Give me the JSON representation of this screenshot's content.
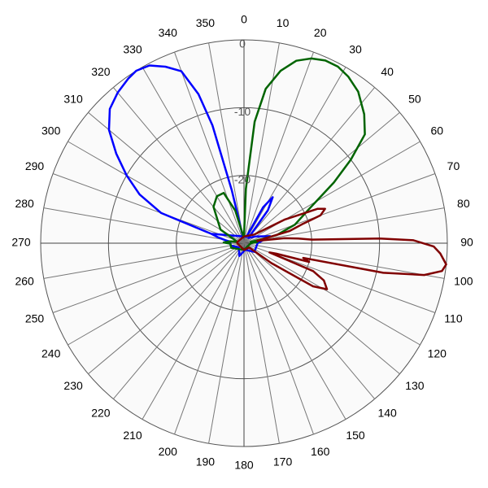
{
  "chart_data": {
    "type": "line",
    "coordinate_system": "polar",
    "angle_direction": "clockwise",
    "angle_zero": "top",
    "angle_ticks": [
      "0",
      "10",
      "20",
      "30",
      "40",
      "50",
      "60",
      "70",
      "80",
      "90",
      "100",
      "110",
      "120",
      "130",
      "140",
      "150",
      "160",
      "170",
      "180",
      "190",
      "200",
      "210",
      "220",
      "230",
      "240",
      "250",
      "260",
      "270",
      "280",
      "290",
      "300",
      "310",
      "320",
      "330",
      "340",
      "350"
    ],
    "radial_range": [
      -30,
      0
    ],
    "radial_ticks": [
      0,
      -10,
      -20
    ],
    "radial_tick_labels": [
      "0",
      "-10",
      "-20"
    ],
    "grid": true,
    "legend": "none",
    "background": "#fafafa",
    "series": [
      {
        "color": "#0000ff",
        "points": [
          [
            0,
            -29
          ],
          [
            286,
            -25
          ],
          [
            290,
            -17
          ],
          [
            295,
            -13
          ],
          [
            300,
            -10
          ],
          [
            305,
            -7
          ],
          [
            310,
            -4
          ],
          [
            315,
            -2
          ],
          [
            320,
            -1
          ],
          [
            325,
            -0.3
          ],
          [
            328,
            0
          ],
          [
            332,
            -0.3
          ],
          [
            336,
            -1.5
          ],
          [
            340,
            -3
          ],
          [
            343,
            -7
          ],
          [
            345,
            -12
          ],
          [
            347,
            -22
          ],
          [
            350,
            -29
          ],
          [
            20,
            -29
          ],
          [
            28,
            -24
          ],
          [
            32,
            -22
          ],
          [
            36,
            -24
          ],
          [
            40,
            -29
          ],
          [
            60,
            -28
          ],
          [
            75,
            -26
          ],
          [
            90,
            -28
          ],
          [
            130,
            -28
          ],
          [
            170,
            -29
          ],
          [
            200,
            -28
          ],
          [
            230,
            -29
          ],
          [
            260,
            -28
          ],
          [
            270,
            -28
          ],
          [
            275,
            -28
          ],
          [
            280,
            -27
          ],
          [
            283,
            -26
          ],
          [
            286,
            -25
          ]
        ]
      },
      {
        "color": "#006400",
        "points": [
          [
            0,
            -29
          ],
          [
            2,
            -22
          ],
          [
            5,
            -12
          ],
          [
            8,
            -7
          ],
          [
            12,
            -4
          ],
          [
            16,
            -2
          ],
          [
            20,
            -1
          ],
          [
            24,
            -0.5
          ],
          [
            28,
            -0.5
          ],
          [
            32,
            -1
          ],
          [
            37,
            -2
          ],
          [
            43,
            -4
          ],
          [
            48,
            -6
          ],
          [
            52,
            -10
          ],
          [
            56,
            -14
          ],
          [
            62,
            -19
          ],
          [
            70,
            -22
          ],
          [
            76,
            -25
          ],
          [
            80,
            -29
          ],
          [
            85,
            -28
          ],
          [
            90,
            -29
          ],
          [
            180,
            -29
          ],
          [
            250,
            -28
          ],
          [
            268,
            -28
          ],
          [
            272,
            -27
          ],
          [
            278,
            -28
          ],
          [
            282,
            -29
          ],
          [
            300,
            -26
          ],
          [
            320,
            -23
          ],
          [
            330,
            -22
          ],
          [
            338,
            -22
          ],
          [
            345,
            -25
          ],
          [
            355,
            -29
          ],
          [
            360,
            -29
          ]
        ]
      },
      {
        "color": "#800000",
        "points": [
          [
            0,
            -29
          ],
          [
            50,
            -28
          ],
          [
            60,
            -23
          ],
          [
            65,
            -18
          ],
          [
            67,
            -17
          ],
          [
            70,
            -18
          ],
          [
            72,
            -21
          ],
          [
            75,
            -23
          ],
          [
            80,
            -28
          ],
          [
            83,
            -24
          ],
          [
            85,
            -22
          ],
          [
            87,
            -20
          ],
          [
            88,
            -10
          ],
          [
            89,
            -5
          ],
          [
            91,
            -2
          ],
          [
            93,
            -1
          ],
          [
            96,
            0
          ],
          [
            98,
            -0.5
          ],
          [
            100,
            -3
          ],
          [
            102,
            -9
          ],
          [
            104,
            -21
          ],
          [
            106,
            -20
          ],
          [
            108,
            -25
          ],
          [
            110,
            -26
          ],
          [
            112,
            -19
          ],
          [
            115,
            -17
          ],
          [
            119,
            -16
          ],
          [
            122,
            -18
          ],
          [
            126,
            -25
          ],
          [
            130,
            -29
          ],
          [
            180,
            -29
          ],
          [
            270,
            -29
          ],
          [
            280,
            -29
          ],
          [
            360,
            -29
          ]
        ]
      }
    ]
  }
}
